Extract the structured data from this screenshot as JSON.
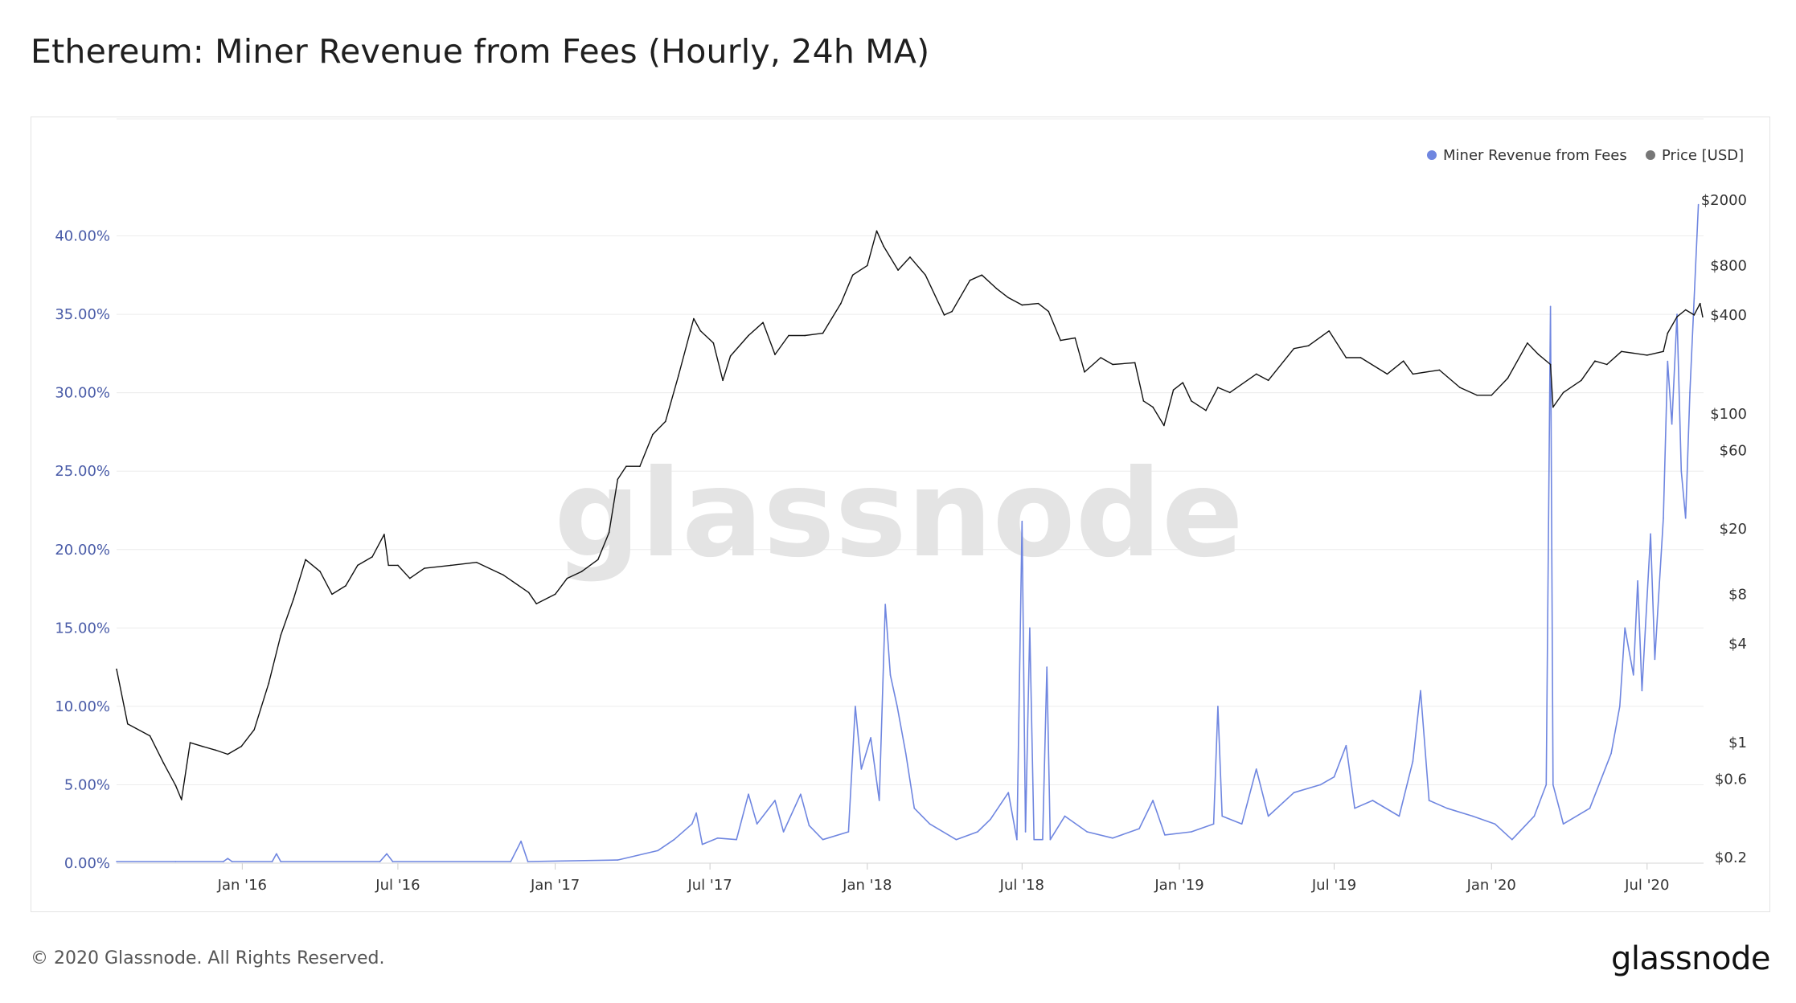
{
  "title": "Ethereum: Miner Revenue from Fees (Hourly, 24h MA)",
  "footer": {
    "copyright": "© 2020 Glassnode. All Rights Reserved.",
    "logo": "glassnode"
  },
  "watermark": "glassnode",
  "colors": {
    "fees": "#6f86e0",
    "price": "#111111",
    "left_axis": "#4a5ca8",
    "grid": "#ececec"
  },
  "chart_data": {
    "type": "line",
    "title": "Ethereum: Miner Revenue from Fees (Hourly, 24h MA)",
    "legend": {
      "placement": "top-right",
      "entries": [
        "Miner Revenue from Fees",
        "Price [USD]"
      ]
    },
    "grid": true,
    "x_range": [
      "2015-08-07",
      "2020-09-05"
    ],
    "x_ticks": [
      {
        "date": "2016-01-01",
        "label": "Jan '16"
      },
      {
        "date": "2016-07-01",
        "label": "Jul '16"
      },
      {
        "date": "2017-01-01",
        "label": "Jan '17"
      },
      {
        "date": "2017-07-01",
        "label": "Jul '17"
      },
      {
        "date": "2018-01-01",
        "label": "Jan '18"
      },
      {
        "date": "2018-07-01",
        "label": "Jul '18"
      },
      {
        "date": "2019-01-01",
        "label": "Jan '19"
      },
      {
        "date": "2019-07-01",
        "label": "Jul '19"
      },
      {
        "date": "2020-01-01",
        "label": "Jan '20"
      },
      {
        "date": "2020-07-01",
        "label": "Jul '20"
      }
    ],
    "left_axis": {
      "label": "",
      "unit": "percent",
      "ylim": [
        0,
        45
      ],
      "ticks": [
        {
          "v": 0,
          "label": "0.00%"
        },
        {
          "v": 5,
          "label": "5.00%"
        },
        {
          "v": 10,
          "label": "10.00%"
        },
        {
          "v": 15,
          "label": "15.00%"
        },
        {
          "v": 20,
          "label": "20.00%"
        },
        {
          "v": 25,
          "label": "25.00%"
        },
        {
          "v": 30,
          "label": "30.00%"
        },
        {
          "v": 35,
          "label": "35.00%"
        },
        {
          "v": 40,
          "label": "40.00%"
        }
      ]
    },
    "right_axis": {
      "label": "",
      "scale": "log",
      "ylim": [
        0.2,
        2000
      ],
      "ticks": [
        {
          "v": 0.2,
          "label": "$0.2"
        },
        {
          "v": 0.6,
          "label": "$0.6"
        },
        {
          "v": 1,
          "label": "$1"
        },
        {
          "v": 4,
          "label": "$4"
        },
        {
          "v": 8,
          "label": "$8"
        },
        {
          "v": 20,
          "label": "$20"
        },
        {
          "v": 60,
          "label": "$60"
        },
        {
          "v": 100,
          "label": "$100"
        },
        {
          "v": 400,
          "label": "$400"
        },
        {
          "v": 800,
          "label": "$800"
        },
        {
          "v": 2000,
          "label": "$2000"
        }
      ]
    },
    "series": [
      {
        "name": "Miner Revenue from Fees",
        "axis": "left",
        "points": [
          [
            "2015-08-07",
            0.1
          ],
          [
            "2015-10-15",
            0.1
          ],
          [
            "2015-12-10",
            0.1
          ],
          [
            "2015-12-15",
            0.3
          ],
          [
            "2015-12-20",
            0.1
          ],
          [
            "2016-02-05",
            0.1
          ],
          [
            "2016-02-10",
            0.6
          ],
          [
            "2016-02-15",
            0.1
          ],
          [
            "2016-06-10",
            0.1
          ],
          [
            "2016-06-18",
            0.6
          ],
          [
            "2016-06-25",
            0.1
          ],
          [
            "2016-11-10",
            0.1
          ],
          [
            "2016-11-22",
            1.4
          ],
          [
            "2016-11-30",
            0.1
          ],
          [
            "2017-03-15",
            0.2
          ],
          [
            "2017-05-01",
            0.8
          ],
          [
            "2017-05-20",
            1.5
          ],
          [
            "2017-06-10",
            2.5
          ],
          [
            "2017-06-15",
            3.2
          ],
          [
            "2017-06-22",
            1.2
          ],
          [
            "2017-07-10",
            1.6
          ],
          [
            "2017-08-01",
            1.5
          ],
          [
            "2017-08-15",
            4.4
          ],
          [
            "2017-08-25",
            2.5
          ],
          [
            "2017-09-15",
            4.0
          ],
          [
            "2017-09-25",
            2.0
          ],
          [
            "2017-10-15",
            4.4
          ],
          [
            "2017-10-25",
            2.4
          ],
          [
            "2017-11-10",
            1.5
          ],
          [
            "2017-12-10",
            2.0
          ],
          [
            "2017-12-18",
            10.0
          ],
          [
            "2017-12-25",
            6.0
          ],
          [
            "2018-01-05",
            8.0
          ],
          [
            "2018-01-15",
            4.0
          ],
          [
            "2018-01-22",
            16.5
          ],
          [
            "2018-01-28",
            12.0
          ],
          [
            "2018-02-05",
            10.0
          ],
          [
            "2018-02-15",
            7.0
          ],
          [
            "2018-02-25",
            3.5
          ],
          [
            "2018-03-15",
            2.5
          ],
          [
            "2018-04-15",
            1.5
          ],
          [
            "2018-05-10",
            2.0
          ],
          [
            "2018-05-25",
            2.8
          ],
          [
            "2018-06-15",
            4.5
          ],
          [
            "2018-06-25",
            1.5
          ],
          [
            "2018-07-01",
            21.8
          ],
          [
            "2018-07-05",
            2.0
          ],
          [
            "2018-07-10",
            15.0
          ],
          [
            "2018-07-15",
            1.5
          ],
          [
            "2018-07-25",
            1.5
          ],
          [
            "2018-07-30",
            12.5
          ],
          [
            "2018-08-03",
            1.5
          ],
          [
            "2018-08-20",
            3.0
          ],
          [
            "2018-09-15",
            2.0
          ],
          [
            "2018-10-15",
            1.6
          ],
          [
            "2018-11-15",
            2.2
          ],
          [
            "2018-12-01",
            4.0
          ],
          [
            "2018-12-15",
            1.8
          ],
          [
            "2019-01-15",
            2.0
          ],
          [
            "2019-02-10",
            2.5
          ],
          [
            "2019-02-15",
            10.0
          ],
          [
            "2019-02-20",
            3.0
          ],
          [
            "2019-03-15",
            2.5
          ],
          [
            "2019-04-01",
            6.0
          ],
          [
            "2019-04-15",
            3.0
          ],
          [
            "2019-05-15",
            4.5
          ],
          [
            "2019-06-15",
            5.0
          ],
          [
            "2019-07-01",
            5.5
          ],
          [
            "2019-07-15",
            7.5
          ],
          [
            "2019-07-25",
            3.5
          ],
          [
            "2019-08-15",
            4.0
          ],
          [
            "2019-09-15",
            3.0
          ],
          [
            "2019-10-01",
            6.5
          ],
          [
            "2019-10-10",
            11.0
          ],
          [
            "2019-10-20",
            4.0
          ],
          [
            "2019-11-10",
            3.5
          ],
          [
            "2019-12-10",
            3.0
          ],
          [
            "2020-01-05",
            2.5
          ],
          [
            "2020-01-25",
            1.5
          ],
          [
            "2020-02-20",
            3.0
          ],
          [
            "2020-03-05",
            5.0
          ],
          [
            "2020-03-10",
            35.5
          ],
          [
            "2020-03-13",
            5.0
          ],
          [
            "2020-03-25",
            2.5
          ],
          [
            "2020-04-25",
            3.5
          ],
          [
            "2020-05-20",
            7.0
          ],
          [
            "2020-05-30",
            10.0
          ],
          [
            "2020-06-05",
            15.0
          ],
          [
            "2020-06-15",
            12.0
          ],
          [
            "2020-06-20",
            18.0
          ],
          [
            "2020-06-25",
            11.0
          ],
          [
            "2020-07-05",
            21.0
          ],
          [
            "2020-07-10",
            13.0
          ],
          [
            "2020-07-20",
            22.0
          ],
          [
            "2020-07-25",
            32.0
          ],
          [
            "2020-07-30",
            28.0
          ],
          [
            "2020-08-05",
            35.0
          ],
          [
            "2020-08-10",
            25.0
          ],
          [
            "2020-08-15",
            22.0
          ],
          [
            "2020-08-20",
            30.0
          ],
          [
            "2020-08-25",
            36.0
          ],
          [
            "2020-08-30",
            42.0
          ]
        ]
      },
      {
        "name": "Price [USD]",
        "axis": "right",
        "points": [
          [
            "2015-08-07",
            2.8
          ],
          [
            "2015-08-20",
            1.3
          ],
          [
            "2015-09-15",
            1.1
          ],
          [
            "2015-10-01",
            0.75
          ],
          [
            "2015-10-15",
            0.55
          ],
          [
            "2015-10-22",
            0.45
          ],
          [
            "2015-11-01",
            1.0
          ],
          [
            "2015-11-15",
            0.95
          ],
          [
            "2015-12-01",
            0.9
          ],
          [
            "2015-12-15",
            0.85
          ],
          [
            "2015-12-31",
            0.95
          ],
          [
            "2016-01-15",
            1.2
          ],
          [
            "2016-02-01",
            2.3
          ],
          [
            "2016-02-15",
            4.5
          ],
          [
            "2016-03-01",
            7.5
          ],
          [
            "2016-03-15",
            13.0
          ],
          [
            "2016-04-01",
            11.0
          ],
          [
            "2016-04-15",
            8.0
          ],
          [
            "2016-05-01",
            9.0
          ],
          [
            "2016-05-15",
            12.0
          ],
          [
            "2016-06-01",
            13.5
          ],
          [
            "2016-06-15",
            18.5
          ],
          [
            "2016-06-20",
            12.0
          ],
          [
            "2016-07-01",
            12.0
          ],
          [
            "2016-07-15",
            10.0
          ],
          [
            "2016-08-01",
            11.5
          ],
          [
            "2016-09-01",
            12.0
          ],
          [
            "2016-10-01",
            12.5
          ],
          [
            "2016-11-01",
            10.5
          ],
          [
            "2016-12-01",
            8.2
          ],
          [
            "2016-12-10",
            7.0
          ],
          [
            "2017-01-01",
            8.0
          ],
          [
            "2017-01-15",
            10.0
          ],
          [
            "2017-02-01",
            11.0
          ],
          [
            "2017-02-20",
            13.0
          ],
          [
            "2017-03-05",
            19.0
          ],
          [
            "2017-03-15",
            40.0
          ],
          [
            "2017-03-25",
            48.0
          ],
          [
            "2017-04-10",
            48.0
          ],
          [
            "2017-04-25",
            75.0
          ],
          [
            "2017-05-10",
            90.0
          ],
          [
            "2017-05-25",
            170.0
          ],
          [
            "2017-06-12",
            380.0
          ],
          [
            "2017-06-20",
            320.0
          ],
          [
            "2017-07-05",
            270.0
          ],
          [
            "2017-07-16",
            160.0
          ],
          [
            "2017-07-25",
            225.0
          ],
          [
            "2017-08-15",
            300.0
          ],
          [
            "2017-09-01",
            360.0
          ],
          [
            "2017-09-15",
            230.0
          ],
          [
            "2017-10-01",
            300.0
          ],
          [
            "2017-10-20",
            300.0
          ],
          [
            "2017-11-10",
            310.0
          ],
          [
            "2017-12-01",
            470.0
          ],
          [
            "2017-12-15",
            700.0
          ],
          [
            "2018-01-01",
            800.0
          ],
          [
            "2018-01-12",
            1300.0
          ],
          [
            "2018-01-20",
            1050.0
          ],
          [
            "2018-02-06",
            750.0
          ],
          [
            "2018-02-20",
            900.0
          ],
          [
            "2018-03-10",
            700.0
          ],
          [
            "2018-04-01",
            400.0
          ],
          [
            "2018-04-10",
            420.0
          ],
          [
            "2018-05-01",
            650.0
          ],
          [
            "2018-05-15",
            700.0
          ],
          [
            "2018-06-01",
            580.0
          ],
          [
            "2018-06-15",
            510.0
          ],
          [
            "2018-07-01",
            460.0
          ],
          [
            "2018-07-20",
            470.0
          ],
          [
            "2018-08-01",
            420.0
          ],
          [
            "2018-08-15",
            280.0
          ],
          [
            "2018-09-01",
            290.0
          ],
          [
            "2018-09-12",
            180.0
          ],
          [
            "2018-10-01",
            220.0
          ],
          [
            "2018-10-15",
            200.0
          ],
          [
            "2018-11-10",
            205.0
          ],
          [
            "2018-11-20",
            120.0
          ],
          [
            "2018-12-01",
            110.0
          ],
          [
            "2018-12-14",
            85.0
          ],
          [
            "2018-12-25",
            140.0
          ],
          [
            "2019-01-05",
            155.0
          ],
          [
            "2019-01-15",
            120.0
          ],
          [
            "2019-02-01",
            105.0
          ],
          [
            "2019-02-15",
            145.0
          ],
          [
            "2019-03-01",
            135.0
          ],
          [
            "2019-04-01",
            175.0
          ],
          [
            "2019-04-15",
            160.0
          ],
          [
            "2019-05-15",
            250.0
          ],
          [
            "2019-06-01",
            260.0
          ],
          [
            "2019-06-25",
            320.0
          ],
          [
            "2019-07-15",
            220.0
          ],
          [
            "2019-08-01",
            220.0
          ],
          [
            "2019-09-01",
            175.0
          ],
          [
            "2019-09-20",
            210.0
          ],
          [
            "2019-10-01",
            175.0
          ],
          [
            "2019-11-01",
            185.0
          ],
          [
            "2019-11-25",
            145.0
          ],
          [
            "2019-12-15",
            130.0
          ],
          [
            "2020-01-01",
            130.0
          ],
          [
            "2020-01-20",
            165.0
          ],
          [
            "2020-02-12",
            270.0
          ],
          [
            "2020-02-25",
            230.0
          ],
          [
            "2020-03-10",
            200.0
          ],
          [
            "2020-03-13",
            110.0
          ],
          [
            "2020-03-25",
            135.0
          ],
          [
            "2020-04-15",
            160.0
          ],
          [
            "2020-05-01",
            210.0
          ],
          [
            "2020-05-15",
            200.0
          ],
          [
            "2020-06-01",
            240.0
          ],
          [
            "2020-07-01",
            228.0
          ],
          [
            "2020-07-20",
            240.0
          ],
          [
            "2020-07-25",
            310.0
          ],
          [
            "2020-08-05",
            390.0
          ],
          [
            "2020-08-15",
            430.0
          ],
          [
            "2020-08-25",
            400.0
          ],
          [
            "2020-09-01",
            470.0
          ],
          [
            "2020-09-04",
            390.0
          ]
        ]
      }
    ]
  }
}
